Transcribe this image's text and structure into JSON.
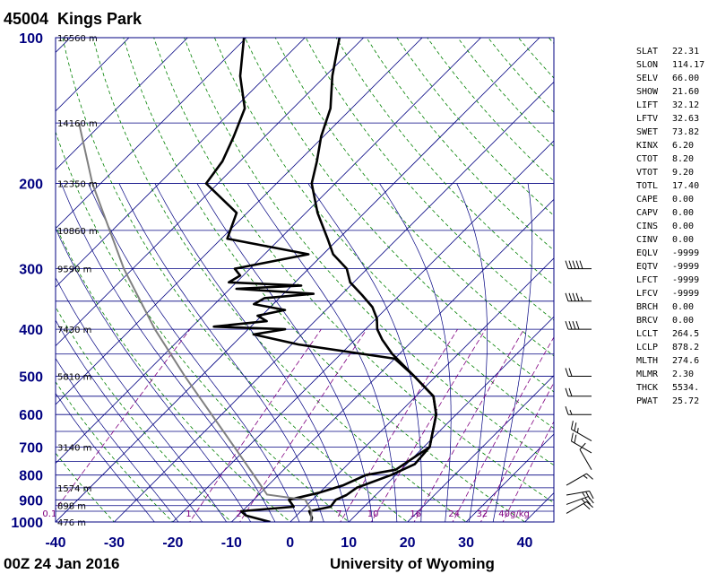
{
  "header": {
    "station": "45004",
    "name": "Kings Park"
  },
  "footer": {
    "time": "00Z 24 Jan 2016",
    "source": "University of Wyoming"
  },
  "colors": {
    "isobar": "#000080",
    "isotherm": "#000080",
    "dry_adiabat": "#008000",
    "moist_adiabat": "#000080",
    "mixing_ratio": "#800080",
    "profile": "#000000",
    "axis_label": "#000080",
    "parcel": "#808080"
  },
  "chart_data": {
    "type": "line",
    "title": "",
    "xlabel": "",
    "ylabel": "",
    "xlim": [
      -40,
      45
    ],
    "ylim": [
      1000,
      100
    ],
    "y_scale": "log",
    "x_ticks": [
      "-40",
      "-30",
      "-20",
      "-10",
      "0",
      "10",
      "20",
      "30",
      "40"
    ],
    "y_ticks": [
      "100",
      "200",
      "300",
      "400",
      "500",
      "600",
      "700",
      "800",
      "900",
      "1000"
    ],
    "height_labels": [
      {
        "p": 100,
        "label": "16560 m"
      },
      {
        "p": 150,
        "label": "14160 m"
      },
      {
        "p": 200,
        "label": "12350 m"
      },
      {
        "p": 250,
        "label": "10860 m"
      },
      {
        "p": 300,
        "label": "9590 m"
      },
      {
        "p": 400,
        "label": "7430 m"
      },
      {
        "p": 500,
        "label": "5810 m"
      },
      {
        "p": 700,
        "label": "3140 m"
      },
      {
        "p": 850,
        "label": "1574 m"
      },
      {
        "p": 925,
        "label": "898 m"
      },
      {
        "p": 1000,
        "label": "476 m"
      }
    ],
    "mixing_ratio_labels": [
      {
        "w": 0.1,
        "label": "0.1"
      },
      {
        "w": 1,
        "label": "1"
      },
      {
        "w": 2,
        "label": "2"
      },
      {
        "w": 7,
        "label": "7"
      },
      {
        "w": 10,
        "label": "10"
      },
      {
        "w": 16,
        "label": "16"
      },
      {
        "w": 24,
        "label": "24"
      },
      {
        "w": 32,
        "label": "32"
      },
      {
        "w": 40,
        "label": "40g/kg"
      }
    ],
    "series": [
      {
        "name": "",
        "points": [
          {
            "p": 1000,
            "t": 3.5
          },
          {
            "p": 980,
            "t": 3.0
          },
          {
            "p": 950,
            "t": 1.4
          },
          {
            "p": 930,
            "t": 4.3
          },
          {
            "p": 900,
            "t": 4.0
          },
          {
            "p": 880,
            "t": 5.0
          },
          {
            "p": 850,
            "t": 5.5
          },
          {
            "p": 800,
            "t": 9.2
          },
          {
            "p": 760,
            "t": 11.4
          },
          {
            "p": 700,
            "t": 11.0
          },
          {
            "p": 600,
            "t": 6.6
          },
          {
            "p": 550,
            "t": 3.0
          },
          {
            "p": 500,
            "t": -3.7
          },
          {
            "p": 450,
            "t": -11.2
          },
          {
            "p": 420,
            "t": -15.4
          },
          {
            "p": 400,
            "t": -18.0
          },
          {
            "p": 380,
            "t": -19.9
          },
          {
            "p": 360,
            "t": -22.6
          },
          {
            "p": 340,
            "t": -26.4
          },
          {
            "p": 320,
            "t": -30.6
          },
          {
            "p": 300,
            "t": -33.5
          },
          {
            "p": 280,
            "t": -38.3
          },
          {
            "p": 260,
            "t": -41.9
          },
          {
            "p": 230,
            "t": -48.0
          },
          {
            "p": 200,
            "t": -54.0
          },
          {
            "p": 180,
            "t": -56.9
          },
          {
            "p": 160,
            "t": -60.4
          },
          {
            "p": 140,
            "t": -63.6
          },
          {
            "p": 120,
            "t": -68.8
          },
          {
            "p": 100,
            "t": -74.1
          }
        ]
      },
      {
        "name": "",
        "points": [
          {
            "p": 1000,
            "t": -3.4
          },
          {
            "p": 970,
            "t": -8.6
          },
          {
            "p": 950,
            "t": -10.2
          },
          {
            "p": 930,
            "t": -2.0
          },
          {
            "p": 900,
            "t": -4.0
          },
          {
            "p": 870,
            "t": 0.0
          },
          {
            "p": 840,
            "t": 2.8
          },
          {
            "p": 800,
            "t": 4.9
          },
          {
            "p": 780,
            "t": 9.1
          },
          {
            "p": 700,
            "t": 11.0
          },
          {
            "p": 600,
            "t": 6.6
          },
          {
            "p": 550,
            "t": 3.0
          },
          {
            "p": 500,
            "t": -3.7
          },
          {
            "p": 460,
            "t": -10.0
          },
          {
            "p": 430,
            "t": -28.8
          },
          {
            "p": 410,
            "t": -38.2
          },
          {
            "p": 400,
            "t": -33.7
          },
          {
            "p": 395,
            "t": -46.3
          },
          {
            "p": 385,
            "t": -38.2
          },
          {
            "p": 375,
            "t": -40.7
          },
          {
            "p": 365,
            "t": -37.0
          },
          {
            "p": 355,
            "t": -43.3
          },
          {
            "p": 345,
            "t": -42.5
          },
          {
            "p": 338,
            "t": -34.9
          },
          {
            "p": 330,
            "t": -48.9
          },
          {
            "p": 325,
            "t": -38.4
          },
          {
            "p": 320,
            "t": -51.3
          },
          {
            "p": 310,
            "t": -50.5
          },
          {
            "p": 300,
            "t": -52.6
          },
          {
            "p": 280,
            "t": -42.5
          },
          {
            "p": 260,
            "t": -59.0
          },
          {
            "p": 230,
            "t": -61.8
          },
          {
            "p": 200,
            "t": -72.0
          },
          {
            "p": 180,
            "t": -73.0
          },
          {
            "p": 160,
            "t": -75.3
          },
          {
            "p": 140,
            "t": -78.2
          },
          {
            "p": 120,
            "t": -84.5
          },
          {
            "p": 100,
            "t": -90.4
          }
        ]
      }
    ],
    "parcel": {
      "name": "",
      "points": [
        {
          "p": 1000,
          "t": 3.5
        },
        {
          "p": 950,
          "t": 1.8
        },
        {
          "p": 900,
          "t": -1.2
        },
        {
          "p": 878,
          "t": -8.6
        },
        {
          "p": 800,
          "t": -14.2
        },
        {
          "p": 700,
          "t": -22.3
        },
        {
          "p": 600,
          "t": -31.7
        },
        {
          "p": 500,
          "t": -42.8
        },
        {
          "p": 400,
          "t": -55.9
        },
        {
          "p": 300,
          "t": -71.5
        },
        {
          "p": 200,
          "t": -91.4
        },
        {
          "p": 150,
          "t": -104.0
        }
      ]
    },
    "wind_barbs": [
      {
        "p": 300,
        "dir": 270,
        "spd": 50
      },
      {
        "p": 350,
        "dir": 270,
        "spd": 45
      },
      {
        "p": 400,
        "dir": 270,
        "spd": 40
      },
      {
        "p": 500,
        "dir": 270,
        "spd": 20
      },
      {
        "p": 550,
        "dir": 270,
        "spd": 20
      },
      {
        "p": 600,
        "dir": 270,
        "spd": 15
      },
      {
        "p": 680,
        "dir": 300,
        "spd": 25
      },
      {
        "p": 720,
        "dir": 300,
        "spd": 20
      },
      {
        "p": 780,
        "dir": 330,
        "spd": 10
      },
      {
        "p": 840,
        "dir": 60,
        "spd": 15
      },
      {
        "p": 880,
        "dir": 80,
        "spd": 25
      },
      {
        "p": 920,
        "dir": 70,
        "spd": 25
      },
      {
        "p": 960,
        "dir": 60,
        "spd": 20
      }
    ]
  },
  "indices": [
    {
      "key": "SLAT",
      "value": "22.31"
    },
    {
      "key": "SLON",
      "value": "114.17"
    },
    {
      "key": "SELV",
      "value": "66.00"
    },
    {
      "key": "SHOW",
      "value": "21.60"
    },
    {
      "key": "LIFT",
      "value": "32.12"
    },
    {
      "key": "LFTV",
      "value": "32.63"
    },
    {
      "key": "SWET",
      "value": "73.82"
    },
    {
      "key": "KINX",
      "value": "6.20"
    },
    {
      "key": "CTOT",
      "value": "8.20"
    },
    {
      "key": "VTOT",
      "value": "9.20"
    },
    {
      "key": "TOTL",
      "value": "17.40"
    },
    {
      "key": "CAPE",
      "value": "0.00"
    },
    {
      "key": "CAPV",
      "value": "0.00"
    },
    {
      "key": "CINS",
      "value": "0.00"
    },
    {
      "key": "CINV",
      "value": "0.00"
    },
    {
      "key": "EQLV",
      "value": "-9999"
    },
    {
      "key": "EQTV",
      "value": "-9999"
    },
    {
      "key": "LFCT",
      "value": "-9999"
    },
    {
      "key": "LFCV",
      "value": "-9999"
    },
    {
      "key": "BRCH",
      "value": "0.00"
    },
    {
      "key": "BRCV",
      "value": "0.00"
    },
    {
      "key": "LCLT",
      "value": "264.5"
    },
    {
      "key": "LCLP",
      "value": "878.2"
    },
    {
      "key": "MLTH",
      "value": "274.6"
    },
    {
      "key": "MLMR",
      "value": "2.30"
    },
    {
      "key": "THCK",
      "value": "5534."
    },
    {
      "key": "PWAT",
      "value": "25.72"
    }
  ]
}
